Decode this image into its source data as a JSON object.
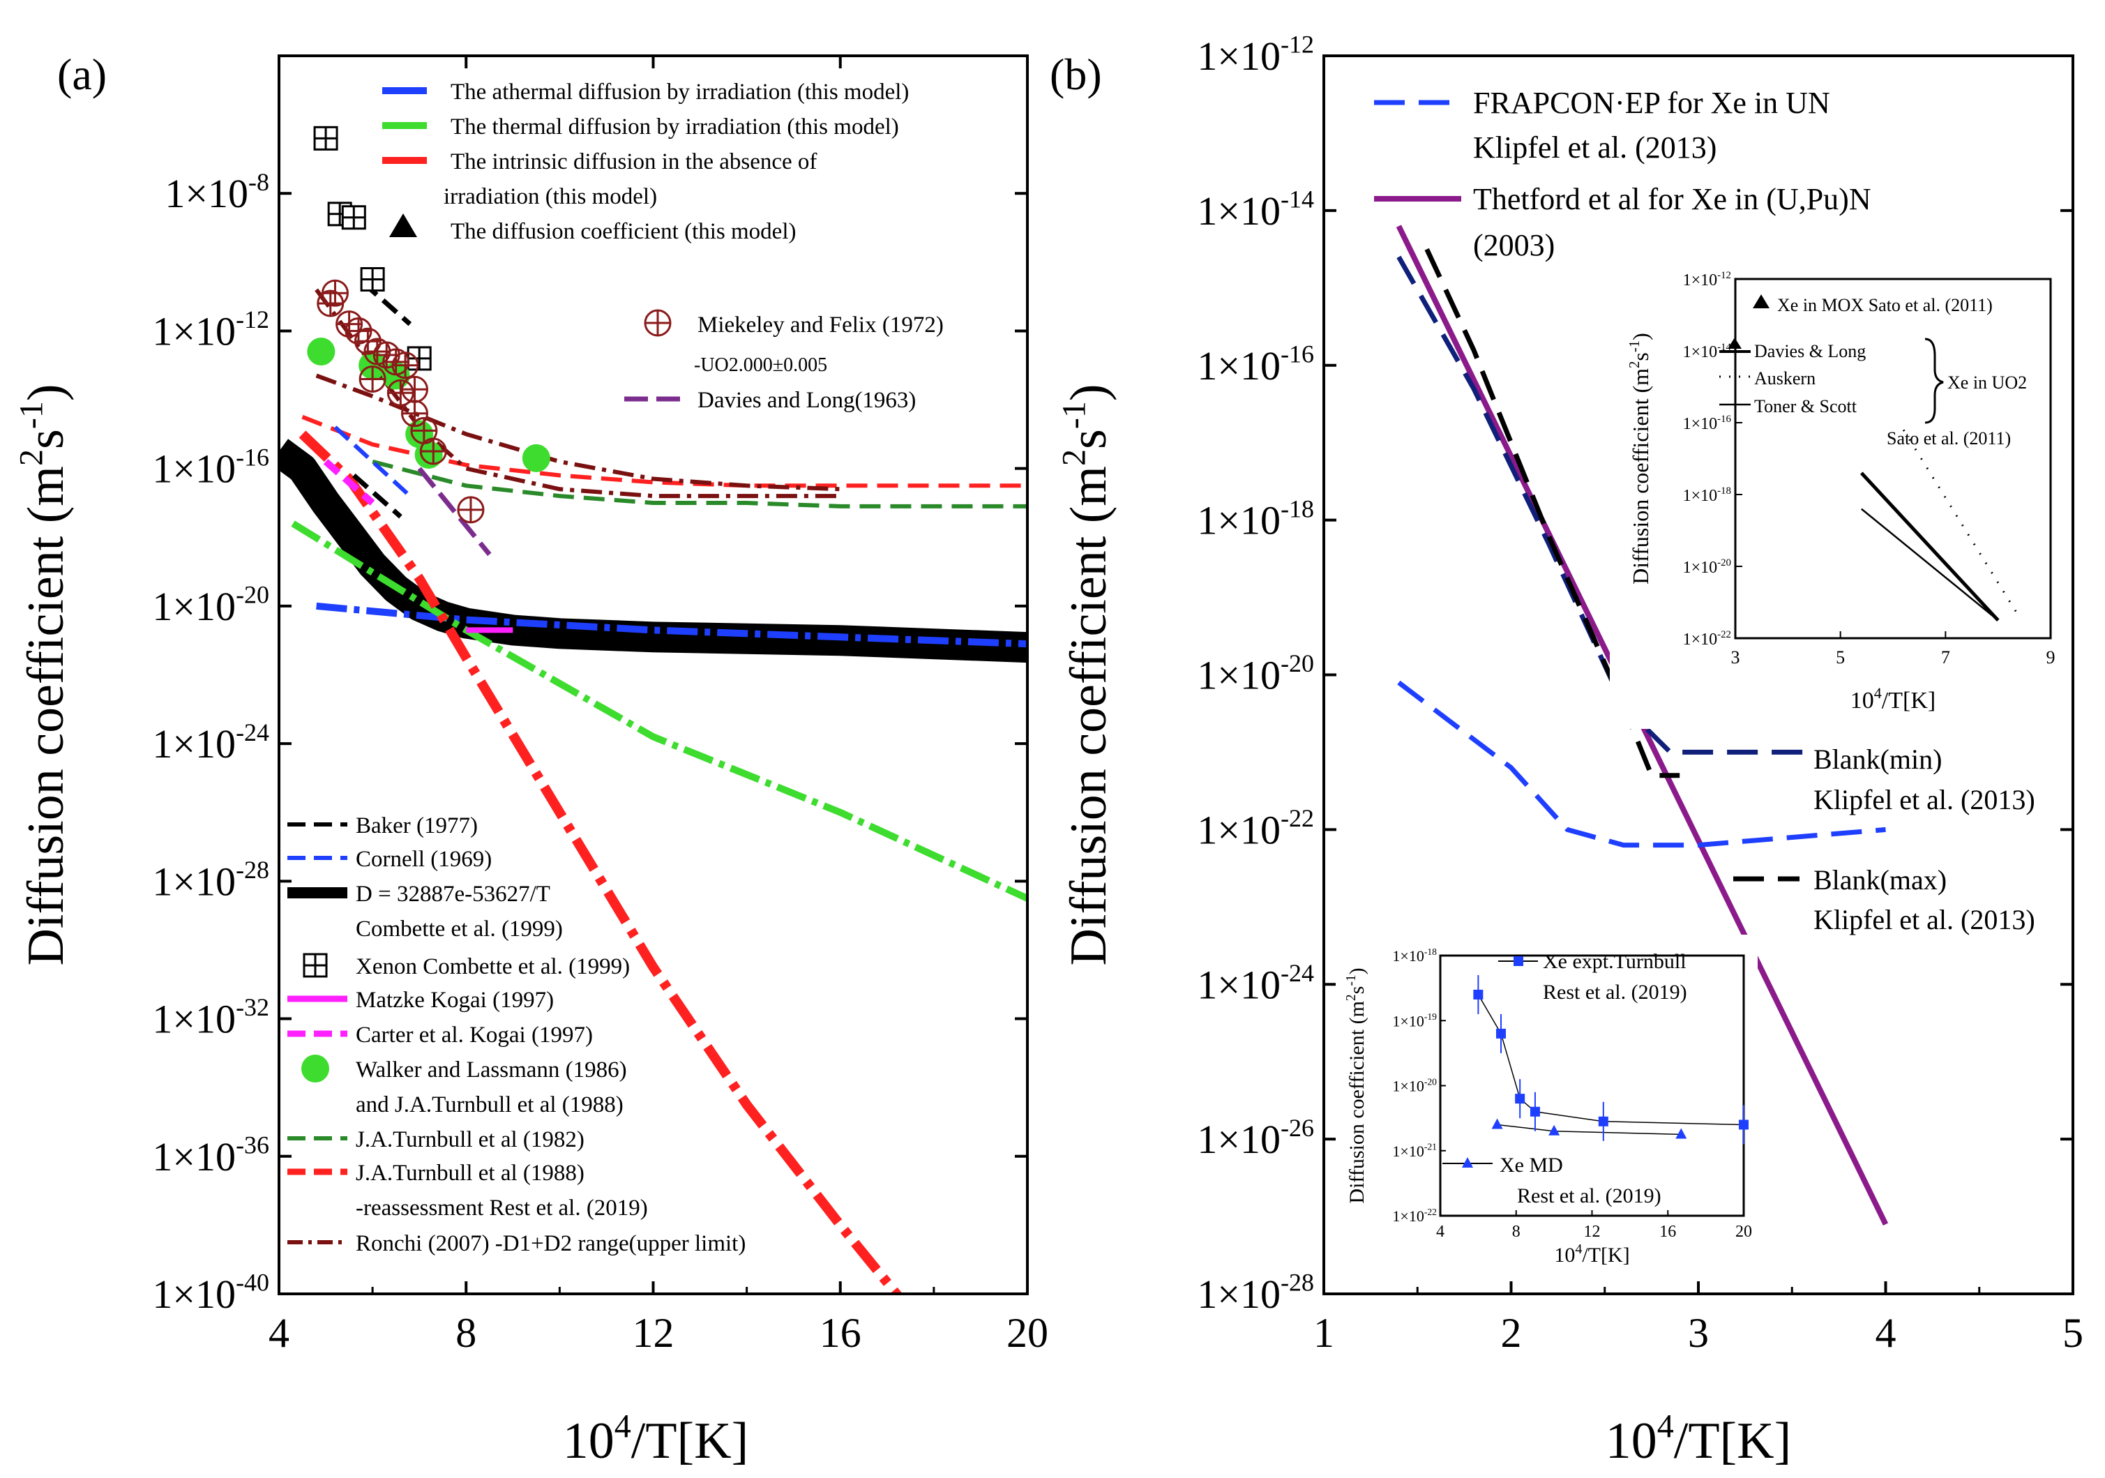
{
  "chart_data": [
    {
      "panel": "(a)",
      "type": "line",
      "xlabel": "10⁴/T[K]",
      "ylabel": "Diffusion coefficient (m²s⁻¹)",
      "xlim": [
        4,
        20
      ],
      "ylim_log10": [
        -40,
        -4
      ],
      "x_ticks": [
        "4",
        "8",
        "12",
        "16",
        "20"
      ],
      "y_ticks": [
        "1×10-40",
        "1×10-36",
        "1×10-32",
        "1×10-28",
        "1×10-24",
        "1×10-20",
        "1×10-16",
        "1×10-12",
        "1×10-8"
      ],
      "legend_top": [
        {
          "label": "The athermal diffusion by irradiation (this model)",
          "color": "#1f3fff"
        },
        {
          "label": "The thermal diffusion by irradiation (this model)",
          "color": "#3ddc2e"
        },
        {
          "label": "The intrinsic diffusion in the absence of",
          "label2": "irradiation  (this model)",
          "color": "#ff2020"
        },
        {
          "label": "The diffusion coefficient (this model)",
          "color": "#000000"
        }
      ],
      "legend_mid": [
        {
          "label": "Miekeley and Felix (1972)",
          "label2": "-UO2.000±0.005",
          "color": "#8b1a1a"
        },
        {
          "label": "Davies and Long(1963)",
          "color": "#7b2d8e"
        }
      ],
      "legend_bottom": [
        {
          "label": "Baker (1977)",
          "color": "#000000"
        },
        {
          "label": "Cornell (1969)",
          "color": "#1f3fff"
        },
        {
          "label": "D = 32887e-53627/T",
          "label2": "Combette et al. (1999)",
          "color": "#000000"
        },
        {
          "label": "Xenon Combette et al. (1999)",
          "color": "#000000"
        },
        {
          "label": "Matzke Kogai (1997)",
          "color": "#ff20ff"
        },
        {
          "label": "Carter et al. Kogai (1997)",
          "color": "#ff20ff"
        },
        {
          "label": "Walker and Lassmann (1986)",
          "label2": "and J.A.Turnbull et al (1988)",
          "color": "#3ddc2e"
        },
        {
          "label": "J.A.Turnbull et al (1982)",
          "color": "#2a8a2a"
        },
        {
          "label": "J.A.Turnbull et al (1988)",
          "label2": "-reassessment Rest et al. (2019)",
          "color": "#ff2020"
        },
        {
          "label": "Ronchi (2007) -D1+D2 range(upper limit)",
          "color": "#7a1010"
        }
      ],
      "series": [
        {
          "name": "D = 32887e-53627/T",
          "color": "#000000",
          "x": [
            4.0,
            4.5,
            5.0,
            5.5,
            6.0,
            6.5,
            7.0,
            7.5,
            8.0,
            9.0,
            10.0,
            12.0,
            16.0,
            20.0
          ],
          "log10y": [
            -15.5,
            -16.0,
            -17.0,
            -17.9,
            -18.8,
            -19.5,
            -20.0,
            -20.3,
            -20.5,
            -20.7,
            -20.8,
            -20.9,
            -21.0,
            -21.2
          ]
        },
        {
          "name": "The athermal diffusion by irradiation (this model)",
          "color": "#1f3fff",
          "x": [
            4.8,
            8,
            12,
            16,
            20
          ],
          "log10y": [
            -20.0,
            -20.4,
            -20.7,
            -20.9,
            -21.1
          ]
        },
        {
          "name": "The thermal diffusion by irradiation (this model)",
          "color": "#3ddc2e",
          "x": [
            4.3,
            8,
            12,
            16,
            20
          ],
          "log10y": [
            -17.6,
            -20.7,
            -23.8,
            -26.0,
            -28.5
          ]
        },
        {
          "name": "The intrinsic diffusion in the absence of irradiation (this model)",
          "color": "#ff2020",
          "x": [
            4.5,
            5.5,
            7.0,
            8.0,
            10.0,
            12.0,
            14.0,
            16.0,
            17.5
          ],
          "log10y": [
            -15.0,
            -16.3,
            -19.2,
            -21.5,
            -26.0,
            -30.5,
            -34.5,
            -38.0,
            -40.5
          ]
        },
        {
          "name": "J.A.Turnbull et al (1988) -reassessment Rest et al. (2019)",
          "color": "#ff2020",
          "x": [
            4.5,
            6,
            8,
            10,
            12,
            14,
            16,
            20
          ],
          "log10y": [
            -14.5,
            -15.3,
            -15.9,
            -16.2,
            -16.4,
            -16.5,
            -16.5,
            -16.5
          ]
        },
        {
          "name": "J.A.Turnbull et al (1982)",
          "color": "#2a8a2a",
          "x": [
            6,
            8,
            10,
            12,
            14,
            16,
            20
          ],
          "log10y": [
            -15.8,
            -16.5,
            -16.8,
            -17.0,
            -17.0,
            -17.1,
            -17.1
          ]
        },
        {
          "name": "Ronchi (2007) -D1+D2 range(upper limit)",
          "color": "#7a1010",
          "x": [
            4.8,
            6,
            8,
            10,
            12,
            14,
            16
          ],
          "log10y": [
            -13.3,
            -13.9,
            -15.0,
            -15.8,
            -16.3,
            -16.5,
            -16.6
          ]
        },
        {
          "name": "Ronchi (2007) lower",
          "color": "#7a1010",
          "x": [
            4.8,
            6,
            7,
            8,
            10,
            12,
            14,
            16
          ],
          "log10y": [
            -10.8,
            -13.0,
            -14.8,
            -16.0,
            -16.6,
            -16.8,
            -16.8,
            -16.8
          ]
        },
        {
          "name": "Baker (1977)",
          "color": "#000000",
          "x": [
            5.8,
            6.8
          ],
          "log10y": [
            -10.6,
            -11.8
          ]
        },
        {
          "name": "Baker (1977) b",
          "color": "#000000",
          "x": [
            5.6,
            6.6
          ],
          "log10y": [
            -16.2,
            -17.4
          ]
        },
        {
          "name": "Cornell (1969)",
          "color": "#1f3fff",
          "x": [
            5.2,
            6.8
          ],
          "log10y": [
            -14.8,
            -16.8
          ]
        },
        {
          "name": "Matzke Kogai (1997)",
          "color": "#ff20ff",
          "x": [
            8.0,
            9.0
          ],
          "log10y": [
            -20.7,
            -20.7
          ]
        },
        {
          "name": "Carter et al. Kogai (1997)",
          "color": "#ff20ff",
          "x": [
            5.0,
            6.0
          ],
          "log10y": [
            -15.8,
            -17.0
          ]
        },
        {
          "name": "Davies and Long(1963)",
          "color": "#7b2d8e",
          "x": [
            7.0,
            8.5
          ],
          "log10y": [
            -16.0,
            -18.5
          ]
        }
      ],
      "scatter": [
        {
          "name": "Xenon Combette et al. (1999)",
          "x": [
            5.0,
            5.3,
            5.6,
            6.0,
            7.0
          ],
          "log10y": [
            -6.4,
            -8.6,
            -8.7,
            -10.5,
            -12.8
          ]
        },
        {
          "name": "Miekeley and Felix (1972)",
          "x": [
            5.1,
            5.2,
            5.5,
            5.7,
            5.9,
            6.1,
            6.3,
            6.5,
            6.7,
            6.9,
            7.1,
            7.3,
            8.1,
            6.0,
            6.6,
            6.9
          ],
          "log10y": [
            -11.2,
            -10.9,
            -11.8,
            -12.0,
            -12.3,
            -12.6,
            -12.7,
            -12.9,
            -13.0,
            -13.7,
            -14.9,
            -15.5,
            -17.2,
            -13.4,
            -13.8,
            -14.4
          ]
        },
        {
          "name": "Walker and Lassmann (1986)",
          "x": [
            4.9,
            6.0,
            6.5,
            7.0,
            7.2,
            9.5
          ],
          "log10y": [
            -12.6,
            -13.0,
            -13.3,
            -15.0,
            -15.6,
            -15.7
          ]
        }
      ]
    },
    {
      "panel": "(b)",
      "type": "line",
      "xlabel": "10⁴/T[K]",
      "ylabel": "Diffusion coefficient (m²s⁻¹)",
      "xlim": [
        1,
        5
      ],
      "ylim_log10": [
        -28,
        -12
      ],
      "x_ticks": [
        "1",
        "2",
        "3",
        "4",
        "5"
      ],
      "y_ticks": [
        "1×10-28",
        "1×10-26",
        "1×10-24",
        "1×10-22",
        "1×10-20",
        "1×10-18",
        "1×10-16",
        "1×10-14",
        "1×10-12"
      ],
      "legend": [
        {
          "label": "FRAPCON·EP for Xe in UN",
          "label2": "Klipfel et al. (2013)",
          "color": "#1f3fff"
        },
        {
          "label": "Thetford et al for Xe in (U,Pu)N",
          "label2": "(2003)",
          "color": "#8b1a8b"
        }
      ],
      "annotations": [
        {
          "label": "Blank(min)",
          "label2": "Klipfel et al. (2013)"
        },
        {
          "label": "Blank(max)",
          "label2": "Klipfel et al. (2013)"
        }
      ],
      "series": [
        {
          "name": "Thetford et al for Xe in (U,Pu)N (2003)",
          "color": "#8b1a8b",
          "x": [
            1.4,
            4.0
          ],
          "log10y": [
            -14.2,
            -27.1
          ]
        },
        {
          "name": "FRAPCON·EP for Xe in UN",
          "color": "#1f3fff",
          "x": [
            1.4,
            2.0,
            2.3,
            2.6,
            3.0,
            3.5,
            4.0
          ],
          "log10y": [
            -20.1,
            -21.2,
            -22.0,
            -22.2,
            -22.2,
            -22.1,
            -22.0
          ]
        },
        {
          "name": "Blank(min)",
          "color": "#10207a",
          "x": [
            1.4,
            1.8,
            2.2,
            2.6,
            2.85,
            3.6
          ],
          "log10y": [
            -14.6,
            -16.3,
            -18.3,
            -20.4,
            -21.0,
            -21.0
          ]
        },
        {
          "name": "Blank(max)",
          "color": "#000000",
          "x": [
            1.55,
            1.8,
            2.2,
            2.6,
            2.75,
            2.9
          ],
          "log10y": [
            -14.5,
            -15.8,
            -18.2,
            -20.4,
            -21.3,
            -21.3
          ]
        }
      ],
      "inset_top": {
        "xlabel": "10⁴/T[K]",
        "ylabel": "Diffusion coefficient (m²s⁻¹)",
        "xlim": [
          3,
          9
        ],
        "ylim_log10": [
          -22,
          -12
        ],
        "x_ticks": [
          "3",
          "5",
          "7",
          "9"
        ],
        "y_ticks": [
          "1×10-22",
          "1×10-20",
          "1×10-18",
          "1×10-16",
          "1×10-14",
          "1×10-12"
        ],
        "legend": [
          "Xe in MOX Sato et al. (2011)",
          "Davies & Long",
          "Auskern",
          "Toner & Scott",
          "Xe in UO2",
          "Sato et al. (2011)"
        ],
        "series": [
          {
            "name": "Davies & Long",
            "x": [
              5.4,
              8.0
            ],
            "log10y": [
              -17.4,
              -21.5
            ]
          },
          {
            "name": "Toner & Scott",
            "x": [
              5.4,
              8.0
            ],
            "log10y": [
              -18.4,
              -21.5
            ]
          },
          {
            "name": "Auskern",
            "x": [
              6.2,
              8.4
            ],
            "log10y": [
              -16.2,
              -21.4
            ]
          }
        ]
      },
      "inset_bottom": {
        "xlabel": "10⁴/T[K]",
        "ylabel": "Diffusion coefficient (m²s⁻¹)",
        "xlim": [
          4,
          20
        ],
        "ylim_log10": [
          -22,
          -18
        ],
        "x_ticks": [
          "4",
          "8",
          "12",
          "16",
          "20"
        ],
        "y_ticks": [
          "1×10-22",
          "1×10-21",
          "1×10-20",
          "1×10-19",
          "1×10-18"
        ],
        "legend": [
          {
            "label": "Xe expt.Turnbull",
            "label2": "Rest et al. (2019)"
          },
          {
            "label": "Xe MD",
            "label2": "Rest et al. (2019)"
          }
        ],
        "series": [
          {
            "name": "Xe expt.Turnbull",
            "x": [
              6.0,
              7.2,
              8.2,
              9.0,
              12.6,
              20.0
            ],
            "log10y": [
              -18.6,
              -19.2,
              -20.2,
              -20.4,
              -20.55,
              -20.6
            ]
          },
          {
            "name": "Xe MD",
            "x": [
              7.0,
              10.0,
              16.7
            ],
            "log10y": [
              -20.6,
              -20.7,
              -20.75
            ]
          }
        ]
      }
    }
  ]
}
